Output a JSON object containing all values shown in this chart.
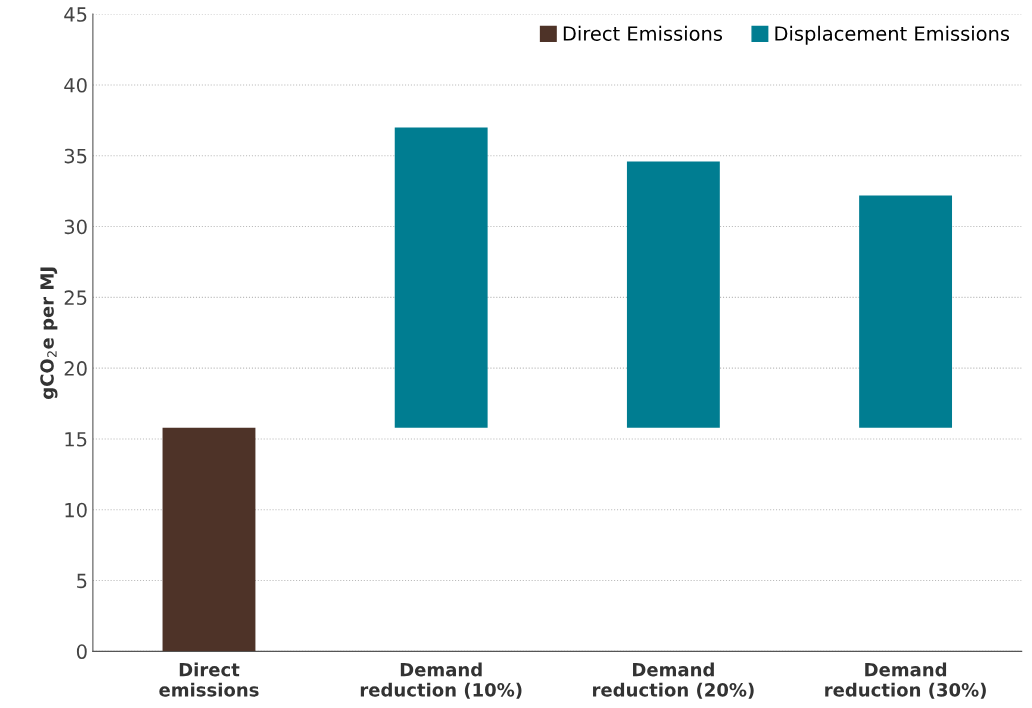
{
  "chart_data": {
    "type": "bar",
    "ylabel": "gCO$_{2}$e per MJ",
    "categories": [
      "Direct\nemissions",
      "Demand\nreduction (10%)",
      "Demand\nreduction (20%)",
      "Demand\nreduction (30%)"
    ],
    "series": [
      {
        "name": "Direct Emissions",
        "color": "#4e3328",
        "values": [
          15.8,
          null,
          null,
          null
        ]
      },
      {
        "name": "Displacement Emissions",
        "color": "#007d91",
        "values": [
          null,
          21.2,
          18.8,
          16.4
        ],
        "base": [
          null,
          15.8,
          15.8,
          15.8
        ]
      }
    ],
    "ylim": [
      0,
      45
    ],
    "yticks": [
      0,
      5,
      10,
      15,
      20,
      25,
      30,
      35,
      40,
      45
    ],
    "grid": "y",
    "legend": "top right"
  }
}
